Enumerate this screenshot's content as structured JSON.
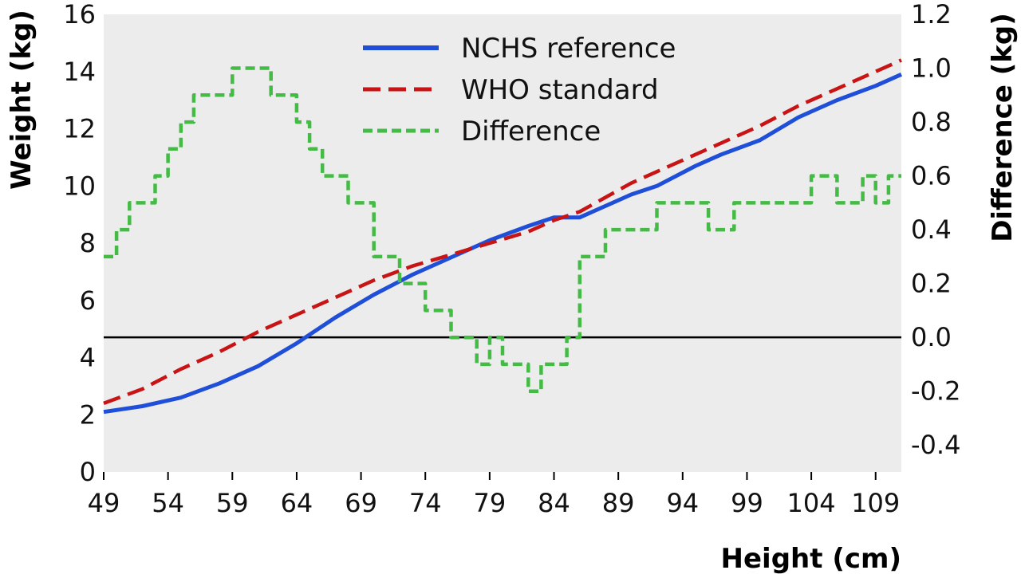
{
  "chart_data": {
    "type": "line",
    "title": "",
    "xlabel": "Height (cm)",
    "ylabel": "Weight (kg)",
    "y2label": "Difference (kg)",
    "xlim": [
      49,
      111
    ],
    "ylim": [
      0,
      16
    ],
    "y2lim": [
      -0.5,
      1.2
    ],
    "xticks": [
      49,
      54,
      59,
      64,
      69,
      74,
      79,
      84,
      89,
      94,
      99,
      104,
      109
    ],
    "yticks": [
      0,
      2,
      4,
      6,
      8,
      10,
      12,
      14,
      16
    ],
    "y2ticks": [
      -0.4,
      -0.2,
      0.0,
      0.2,
      0.4,
      0.6,
      0.8,
      1.0,
      1.2
    ],
    "y2tick_labels": [
      "-0.4",
      "-0.2",
      "0.0",
      "0.2",
      "0.4",
      "0.6",
      "0.8",
      "1.0",
      "1.2"
    ],
    "grid": false,
    "background": "#ececec",
    "zero_line_y2": 0.0,
    "legend": {
      "position": "top-center"
    },
    "series": [
      {
        "name": "NCHS reference",
        "axis": "left",
        "color": "#1f4fd8",
        "dash": "solid",
        "x": [
          49,
          52,
          55,
          58,
          61,
          64,
          67,
          70,
          73,
          76,
          79,
          82,
          84,
          86,
          88,
          90,
          92,
          95,
          97,
          100,
          103,
          106,
          109,
          111
        ],
        "y": [
          2.1,
          2.3,
          2.6,
          3.1,
          3.7,
          4.5,
          5.4,
          6.2,
          6.9,
          7.5,
          8.1,
          8.6,
          8.9,
          8.9,
          9.3,
          9.7,
          10.0,
          10.7,
          11.1,
          11.6,
          12.4,
          13.0,
          13.5,
          13.9
        ]
      },
      {
        "name": "WHO standard",
        "axis": "left",
        "color": "#c81414",
        "dash": "dashed",
        "x": [
          49,
          52,
          55,
          58,
          61,
          64,
          67,
          70,
          73,
          76,
          79,
          82,
          84,
          86,
          88,
          90,
          92,
          95,
          97,
          100,
          103,
          106,
          109,
          111
        ],
        "y": [
          2.4,
          2.9,
          3.6,
          4.2,
          4.9,
          5.5,
          6.1,
          6.7,
          7.2,
          7.6,
          8.0,
          8.4,
          8.8,
          9.1,
          9.6,
          10.1,
          10.5,
          11.1,
          11.5,
          12.1,
          12.8,
          13.4,
          14.0,
          14.4
        ]
      },
      {
        "name": "Difference",
        "axis": "right",
        "color": "#44bb44",
        "dash": "dashed",
        "x": [
          49,
          50,
          51,
          52,
          53,
          54,
          55,
          56,
          57,
          58,
          59,
          60,
          61,
          62,
          63,
          64,
          65,
          66,
          67,
          68,
          69,
          70,
          71,
          72,
          73,
          74,
          75,
          76,
          77,
          78,
          79,
          80,
          81,
          82,
          83,
          84,
          85,
          86,
          87,
          88,
          89,
          90,
          91,
          92,
          93,
          94,
          95,
          96,
          97,
          98,
          99,
          100,
          101,
          102,
          103,
          104,
          105,
          106,
          107,
          108,
          109,
          110,
          111
        ],
        "y": [
          0.3,
          0.4,
          0.5,
          0.5,
          0.6,
          0.7,
          0.8,
          0.9,
          0.9,
          0.9,
          1.0,
          1.0,
          1.0,
          0.9,
          0.9,
          0.8,
          0.7,
          0.6,
          0.6,
          0.5,
          0.5,
          0.3,
          0.3,
          0.2,
          0.2,
          0.1,
          0.1,
          0.0,
          0.0,
          -0.1,
          0.0,
          -0.1,
          -0.1,
          -0.2,
          -0.1,
          -0.1,
          0.0,
          0.3,
          0.3,
          0.4,
          0.4,
          0.4,
          0.4,
          0.5,
          0.5,
          0.5,
          0.5,
          0.4,
          0.4,
          0.5,
          0.5,
          0.5,
          0.5,
          0.5,
          0.5,
          0.6,
          0.6,
          0.5,
          0.5,
          0.6,
          0.5,
          0.6,
          0.6
        ]
      }
    ]
  }
}
